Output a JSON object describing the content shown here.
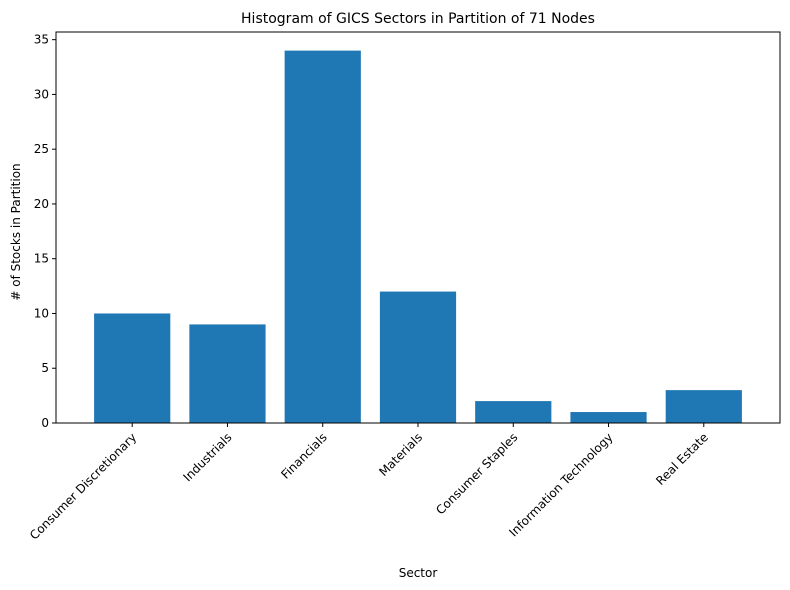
{
  "chart_data": {
    "type": "bar",
    "title": "Histogram of GICS Sectors in Partition of 71 Nodes",
    "xlabel": "Sector",
    "ylabel": "# of Stocks in Partition",
    "categories": [
      "Consumer Discretionary",
      "Industrials",
      "Financials",
      "Materials",
      "Consumer Staples",
      "Information Technology",
      "Real Estate"
    ],
    "values": [
      10,
      9,
      34,
      12,
      2,
      1,
      3
    ],
    "ylim": [
      0,
      35.7
    ],
    "yticks": [
      0,
      5,
      10,
      15,
      20,
      25,
      30,
      35
    ],
    "bar_color": "#1f77b4",
    "grid": false,
    "legend": "none"
  }
}
